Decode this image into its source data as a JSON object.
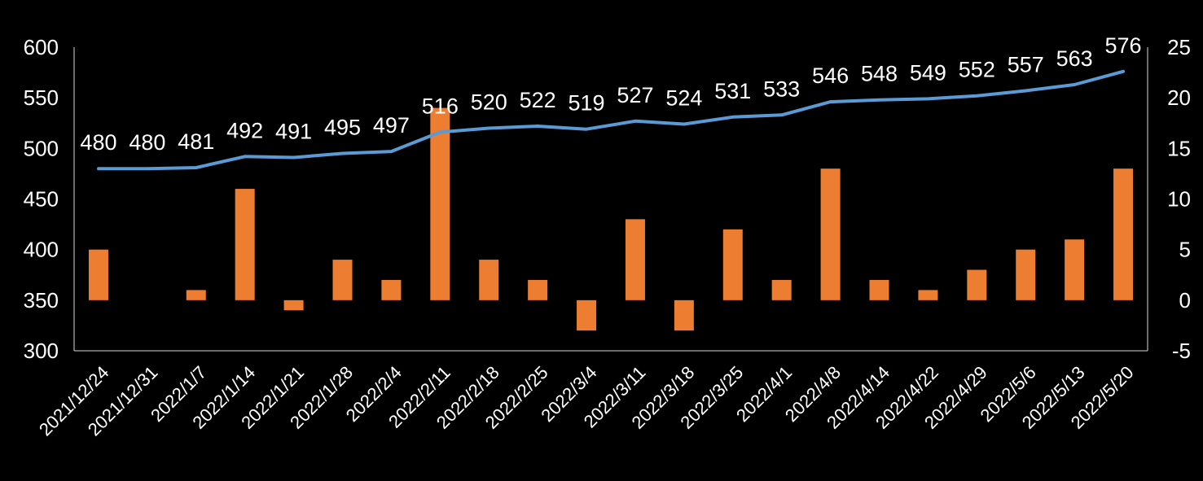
{
  "chart_data": {
    "type": "bar",
    "categories": [
      "2021/12/24",
      "2021/12/31",
      "2022/1/7",
      "2022/1/14",
      "2022/1/21",
      "2022/1/28",
      "2022/2/4",
      "2022/2/11",
      "2022/2/18",
      "2022/2/25",
      "2022/3/4",
      "2022/3/11",
      "2022/3/18",
      "2022/3/25",
      "2022/4/1",
      "2022/4/8",
      "2022/4/14",
      "2022/4/22",
      "2022/4/29",
      "2022/5/6",
      "2022/5/13",
      "2022/5/20"
    ],
    "series": [
      {
        "name": "line",
        "type": "line",
        "axis": "left",
        "color": "#5b9bd5",
        "values": [
          480,
          480,
          481,
          492,
          491,
          495,
          497,
          516,
          520,
          522,
          519,
          527,
          524,
          531,
          533,
          546,
          548,
          549,
          552,
          557,
          563,
          576
        ]
      },
      {
        "name": "bar",
        "type": "bar",
        "axis": "right",
        "color": "#ed7d31",
        "values": [
          5,
          0,
          1,
          11,
          -1,
          4,
          2,
          19,
          4,
          2,
          -3,
          8,
          -3,
          7,
          2,
          13,
          2,
          1,
          3,
          5,
          6,
          13
        ]
      }
    ],
    "y_left": {
      "min": 300,
      "max": 600,
      "ticks": [
        300,
        350,
        400,
        450,
        500,
        550,
        600
      ]
    },
    "y_right": {
      "min": -5,
      "max": 25,
      "ticks": [
        -5,
        0,
        5,
        10,
        15,
        20,
        25
      ]
    },
    "title": "",
    "xlabel": "",
    "ylabel": "",
    "grid": false,
    "legend": "none"
  }
}
